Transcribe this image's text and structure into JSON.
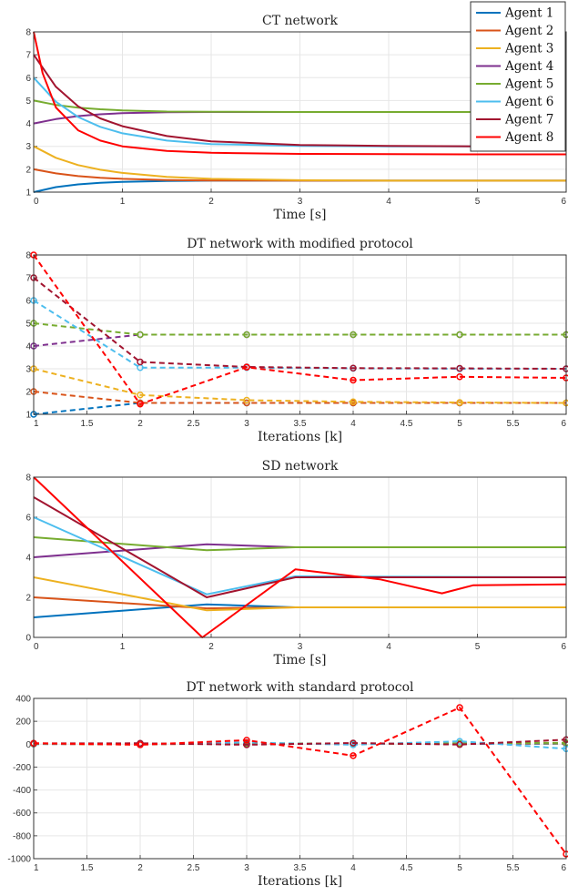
{
  "chart_data": [
    {
      "type": "line",
      "title": "CT network",
      "xlabel": "Time [s]",
      "ylabel": "",
      "xlim": [
        0,
        6
      ],
      "ylim": [
        1,
        8
      ],
      "xticks": [
        "0",
        "1",
        "2",
        "3",
        "4",
        "5",
        "6"
      ],
      "yticks": [
        "1",
        "2",
        "3",
        "4",
        "5",
        "6",
        "7",
        "8"
      ],
      "grid": true,
      "legend_position": "top-right",
      "legend": [
        "Agent 1",
        "Agent 2",
        "Agent 3",
        "Agent 4",
        "Agent 5",
        "Agent 6",
        "Agent 7",
        "Agent 8"
      ],
      "line_style": "solid",
      "markers": false,
      "series": [
        {
          "name": "Agent 1",
          "color": "#0072BD",
          "x": [
            0,
            0.25,
            0.5,
            0.75,
            1,
            1.5,
            2,
            3,
            4,
            5,
            6
          ],
          "y": [
            1,
            1.22,
            1.34,
            1.41,
            1.45,
            1.49,
            1.5,
            1.5,
            1.5,
            1.5,
            1.5
          ]
        },
        {
          "name": "Agent 2",
          "color": "#D95319",
          "x": [
            0,
            0.25,
            0.5,
            0.75,
            1,
            1.5,
            2,
            3,
            4,
            5,
            6
          ],
          "y": [
            2,
            1.82,
            1.7,
            1.63,
            1.58,
            1.53,
            1.51,
            1.5,
            1.5,
            1.5,
            1.5
          ]
        },
        {
          "name": "Agent 3",
          "color": "#EDB120",
          "x": [
            0,
            0.25,
            0.5,
            0.75,
            1,
            1.5,
            2,
            3,
            4,
            5,
            6
          ],
          "y": [
            3,
            2.5,
            2.18,
            1.98,
            1.84,
            1.67,
            1.58,
            1.52,
            1.5,
            1.5,
            1.5
          ]
        },
        {
          "name": "Agent 4",
          "color": "#7E2F8E",
          "x": [
            0,
            0.25,
            0.5,
            0.75,
            1,
            1.5,
            2,
            3,
            4,
            5,
            6
          ],
          "y": [
            4,
            4.19,
            4.32,
            4.4,
            4.45,
            4.49,
            4.5,
            4.5,
            4.5,
            4.5,
            4.5
          ]
        },
        {
          "name": "Agent 5",
          "color": "#77AC30",
          "x": [
            0,
            0.25,
            0.5,
            0.75,
            1,
            1.5,
            2,
            3,
            4,
            5,
            6
          ],
          "y": [
            5,
            4.81,
            4.69,
            4.62,
            4.57,
            4.52,
            4.51,
            4.5,
            4.5,
            4.5,
            4.5
          ]
        },
        {
          "name": "Agent 6",
          "color": "#4DBEEE",
          "x": [
            0,
            0.25,
            0.5,
            0.75,
            1,
            1.5,
            2,
            3,
            4,
            5,
            6
          ],
          "y": [
            6,
            4.95,
            4.28,
            3.85,
            3.57,
            3.25,
            3.1,
            3.02,
            3,
            3,
            3
          ]
        },
        {
          "name": "Agent 7",
          "color": "#A2142F",
          "x": [
            0,
            0.25,
            0.5,
            0.75,
            1,
            1.5,
            2,
            3,
            4,
            5,
            6
          ],
          "y": [
            7,
            5.6,
            4.75,
            4.22,
            3.88,
            3.45,
            3.22,
            3.06,
            3.02,
            3.0,
            3.0
          ]
        },
        {
          "name": "Agent 8",
          "color": "#FF0000",
          "x": [
            0,
            0.1,
            0.25,
            0.5,
            0.75,
            1,
            1.5,
            2,
            3,
            4,
            5,
            6
          ],
          "y": [
            8,
            6.2,
            4.7,
            3.7,
            3.25,
            3.0,
            2.8,
            2.72,
            2.67,
            2.66,
            2.65,
            2.65
          ]
        }
      ]
    },
    {
      "type": "line",
      "title": "DT network with modified protocol",
      "xlabel": "Iterations [k]",
      "ylabel": "",
      "xlim": [
        1,
        6
      ],
      "ylim": [
        1,
        8
      ],
      "xticks": [
        "1",
        "1.5",
        "2",
        "2.5",
        "3",
        "3.5",
        "4",
        "4.5",
        "5",
        "5.5",
        "6"
      ],
      "yticks": [
        "1",
        "2",
        "3",
        "4",
        "5",
        "6",
        "7",
        "8"
      ],
      "grid": true,
      "line_style": "dashed",
      "markers": true,
      "series": [
        {
          "color": "#0072BD",
          "x": [
            1,
            2,
            3,
            4,
            5,
            6
          ],
          "y": [
            1,
            1.5,
            1.5,
            1.5,
            1.5,
            1.5
          ]
        },
        {
          "color": "#D95319",
          "x": [
            1,
            2,
            3,
            4,
            5,
            6
          ],
          "y": [
            2,
            1.5,
            1.5,
            1.5,
            1.5,
            1.5
          ]
        },
        {
          "color": "#EDB120",
          "x": [
            1,
            2,
            3,
            4,
            5,
            6
          ],
          "y": [
            3,
            1.85,
            1.62,
            1.55,
            1.52,
            1.5
          ]
        },
        {
          "color": "#7E2F8E",
          "x": [
            1,
            2,
            3,
            4,
            5,
            6
          ],
          "y": [
            4,
            4.5,
            4.5,
            4.5,
            4.5,
            4.5
          ]
        },
        {
          "color": "#77AC30",
          "x": [
            1,
            2,
            3,
            4,
            5,
            6
          ],
          "y": [
            5,
            4.5,
            4.5,
            4.5,
            4.5,
            4.5
          ]
        },
        {
          "color": "#4DBEEE",
          "x": [
            1,
            2,
            3,
            4,
            5,
            6
          ],
          "y": [
            6,
            3.05,
            3.05,
            3.02,
            3.0,
            3.0
          ]
        },
        {
          "color": "#A2142F",
          "x": [
            1,
            2,
            3,
            4,
            5,
            6
          ],
          "y": [
            7,
            3.3,
            3.08,
            3.03,
            3.02,
            3.0
          ]
        },
        {
          "color": "#FF0000",
          "x": [
            1,
            2,
            3,
            4,
            5,
            6
          ],
          "y": [
            8,
            1.45,
            3.07,
            2.5,
            2.65,
            2.6
          ]
        }
      ]
    },
    {
      "type": "line",
      "title": "SD network",
      "xlabel": "Time [s]",
      "ylabel": "",
      "xlim": [
        0,
        6
      ],
      "ylim": [
        0,
        8
      ],
      "xticks": [
        "0",
        "1",
        "2",
        "3",
        "4",
        "5",
        "6"
      ],
      "yticks": [
        "0",
        "2",
        "4",
        "6",
        "8"
      ],
      "grid": true,
      "line_style": "solid",
      "markers": false,
      "series": [
        {
          "color": "#0072BD",
          "x": [
            0,
            1.95,
            2.95,
            6
          ],
          "y": [
            1,
            1.65,
            1.5,
            1.5
          ]
        },
        {
          "color": "#D95319",
          "x": [
            0,
            1.95,
            2.95,
            6
          ],
          "y": [
            2,
            1.45,
            1.5,
            1.5
          ]
        },
        {
          "color": "#EDB120",
          "x": [
            0,
            1.95,
            2.95,
            6
          ],
          "y": [
            3,
            1.35,
            1.5,
            1.5
          ]
        },
        {
          "color": "#7E2F8E",
          "x": [
            0,
            1.95,
            2.95,
            6
          ],
          "y": [
            4,
            4.65,
            4.5,
            4.5
          ]
        },
        {
          "color": "#77AC30",
          "x": [
            0,
            1.95,
            2.95,
            6
          ],
          "y": [
            5,
            4.35,
            4.5,
            4.5
          ]
        },
        {
          "color": "#4DBEEE",
          "x": [
            0,
            1.95,
            2.95,
            6
          ],
          "y": [
            6,
            2.15,
            3.05,
            3.0
          ]
        },
        {
          "color": "#A2142F",
          "x": [
            0,
            1.95,
            2.95,
            6
          ],
          "y": [
            7,
            2.0,
            3.0,
            3.0
          ]
        },
        {
          "color": "#FF0000",
          "x": [
            0,
            1.9,
            2.95,
            3.9,
            4.6,
            4.95,
            6
          ],
          "y": [
            8,
            0,
            3.4,
            2.9,
            2.2,
            2.6,
            2.65
          ]
        }
      ]
    },
    {
      "type": "line",
      "title": "DT network with standard protocol",
      "xlabel": "Iterations [k]",
      "ylabel": "",
      "xlim": [
        1,
        6
      ],
      "ylim": [
        -1000,
        400
      ],
      "xticks": [
        "1",
        "1.5",
        "2",
        "2.5",
        "3",
        "3.5",
        "4",
        "4.5",
        "5",
        "5.5",
        "6"
      ],
      "yticks": [
        "-1000",
        "-800",
        "-600",
        "-400",
        "-200",
        "0",
        "200",
        "400"
      ],
      "grid": true,
      "line_style": "dashed",
      "markers": true,
      "series": [
        {
          "color": "#0072BD",
          "x": [
            1,
            2,
            3,
            4,
            5,
            6
          ],
          "y": [
            1,
            2,
            4,
            3,
            4,
            3
          ]
        },
        {
          "color": "#D95319",
          "x": [
            1,
            2,
            3,
            4,
            5,
            6
          ],
          "y": [
            2,
            -3,
            8,
            2,
            5,
            6
          ]
        },
        {
          "color": "#EDB120",
          "x": [
            1,
            2,
            3,
            4,
            5,
            6
          ],
          "y": [
            3,
            0,
            10,
            4,
            6,
            8
          ]
        },
        {
          "color": "#7E2F8E",
          "x": [
            1,
            2,
            3,
            4,
            5,
            6
          ],
          "y": [
            4,
            5,
            2,
            6,
            4,
            10
          ]
        },
        {
          "color": "#77AC30",
          "x": [
            1,
            2,
            3,
            4,
            5,
            6
          ],
          "y": [
            5,
            4,
            6,
            5,
            8,
            12
          ]
        },
        {
          "color": "#4DBEEE",
          "x": [
            1,
            2,
            3,
            4,
            5,
            6
          ],
          "y": [
            6,
            -2,
            15,
            -5,
            25,
            -40
          ]
        },
        {
          "color": "#A2142F",
          "x": [
            1,
            2,
            3,
            4,
            5,
            6
          ],
          "y": [
            7,
            8,
            -5,
            10,
            -3,
            40
          ]
        },
        {
          "color": "#FF0000",
          "x": [
            1,
            2,
            3,
            4,
            5,
            6
          ],
          "y": [
            8,
            -5,
            35,
            -100,
            320,
            -960
          ]
        }
      ]
    }
  ]
}
